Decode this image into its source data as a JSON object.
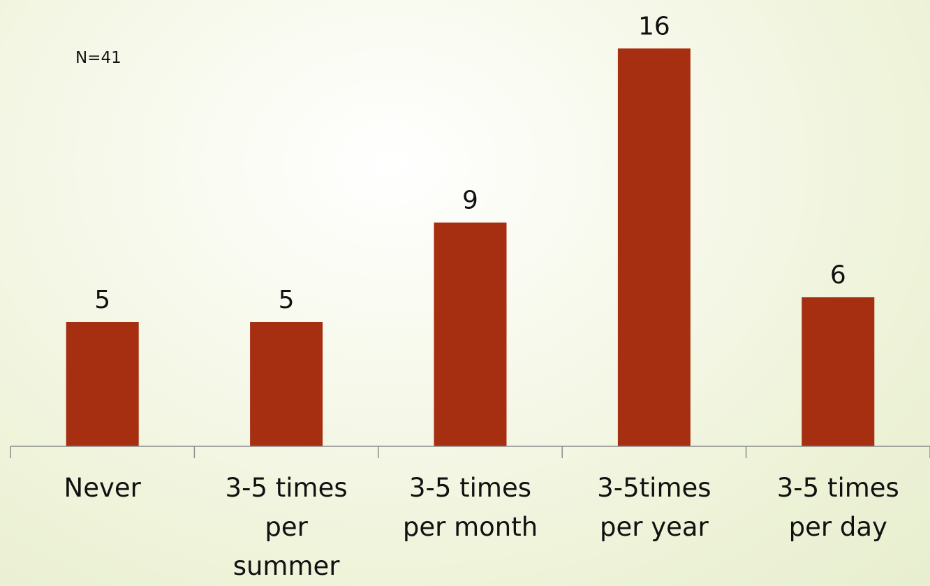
{
  "chart_data": {
    "type": "bar",
    "title": "",
    "xlabel": "",
    "ylabel": "",
    "annotation": "N=41",
    "categories": [
      "Never",
      "3-5 times per summer",
      "3-5 times per month",
      "3-5times per year",
      "3-5 times per day"
    ],
    "category_lines": [
      [
        "Never"
      ],
      [
        "3-5 times",
        "per",
        "summer"
      ],
      [
        "3-5 times",
        "per month"
      ],
      [
        "3-5times",
        "per year"
      ],
      [
        "3-5 times",
        "per day"
      ]
    ],
    "values": [
      5,
      5,
      9,
      16,
      6
    ],
    "ylim": [
      0,
      18
    ],
    "grid": false,
    "data_labels": true,
    "colors": {
      "bar": "#A62F12",
      "axis": "#8C8C8C",
      "text": "#111111"
    }
  }
}
